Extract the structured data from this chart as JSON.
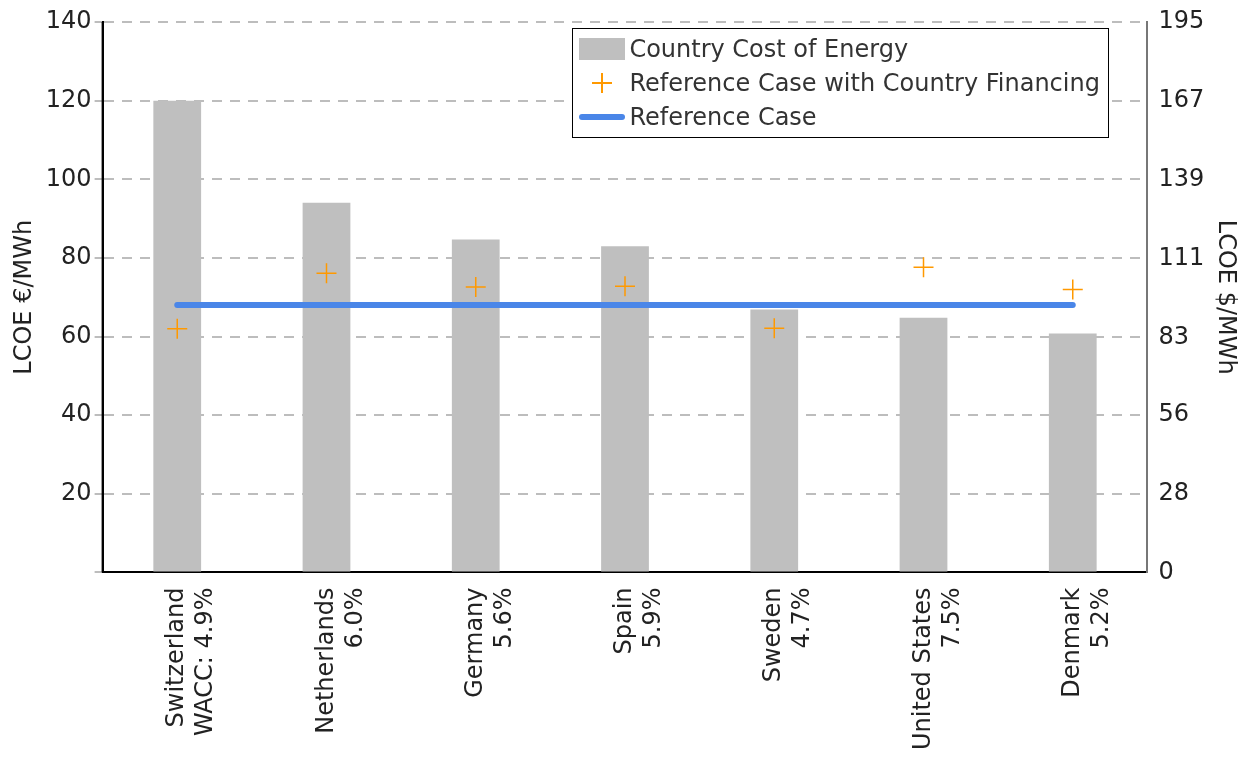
{
  "chart_data": {
    "type": "bar",
    "ylabel": "LCOE €/MWh",
    "y2label": "LCOE $/MWh",
    "categories": [
      "Switzerland\nWACC: 4.9%",
      "Netherlands\n6.0%",
      "Germany\n5.6%",
      "Spain\n5.9%",
      "Sweden\n4.7%",
      "United States\n7.5%",
      "Denmark\n5.2%"
    ],
    "series": [
      {
        "name": "Country Cost of Energy",
        "color": "#bfbfbf",
        "values": [
          120,
          94,
          84.7,
          83,
          66.9,
          64.8,
          60.8
        ]
      },
      {
        "name": "Reference Case with Country Financing",
        "type": "scatter",
        "marker": "cross",
        "color": "#ff9900",
        "values": [
          62,
          76.1,
          72.6,
          72.8,
          62.1,
          77.6,
          72
        ]
      },
      {
        "name": "Reference Case",
        "type": "line",
        "color": "#4a86e8",
        "marker": "none",
        "values": [
          68,
          68,
          68,
          68,
          68,
          68,
          68
        ]
      }
    ],
    "ylim": [
      0,
      140
    ],
    "yticks": [
      {
        "value": 0,
        "label": null
      },
      20,
      40,
      60,
      80,
      100,
      120,
      140
    ],
    "y2lim": [
      0,
      195
    ],
    "y2ticks": [
      0,
      28,
      56,
      83,
      111,
      139,
      167,
      195
    ],
    "grid": "y",
    "legend": "top right"
  }
}
